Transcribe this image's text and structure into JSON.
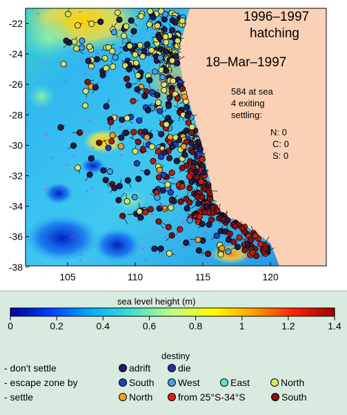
{
  "map": {
    "title_line1": "1996–1997",
    "title_line2": "hatching",
    "date": "18–Mar–1997",
    "stats": {
      "at_sea": "584 at sea",
      "exiting": "4 exiting",
      "settling": "settling:",
      "north": "N: 0",
      "central": "C: 0",
      "south": "S: 0"
    },
    "lat_ticks": [
      "-22",
      "-24",
      "-26",
      "-28",
      "-30",
      "-32",
      "-34",
      "-36",
      "-38"
    ],
    "lon_ticks": [
      "105",
      "110",
      "115",
      "120"
    ],
    "colors": {
      "land": "#fbd1b5",
      "marker_adrift": "#1a1a6e",
      "marker_south_settle": "#7a1010",
      "marker_north_escape": "#d8e060",
      "current_arrows": "#e030e0"
    }
  },
  "colorbar": {
    "title": "sea level height  (m)",
    "ticks": [
      "0",
      "0.2",
      "0.4",
      "0.6",
      "0.8",
      "1",
      "1.2",
      "1.4"
    ],
    "colors": [
      "#0000a0",
      "#0040ff",
      "#00b0ff",
      "#40e0d0",
      "#c0ff80",
      "#ffff00",
      "#ffa000",
      "#ff2000",
      "#a00000"
    ]
  },
  "legend": {
    "heading": "destiny",
    "rows": [
      {
        "category": "- don't settle",
        "items": [
          {
            "label": "adrift",
            "color": "#1c1c6e"
          },
          {
            "label": "die",
            "color": "#2430b0"
          }
        ]
      },
      {
        "category": "- escape zone by",
        "items": [
          {
            "label": "South",
            "color": "#1e40d0"
          },
          {
            "label": "West",
            "color": "#40a0e8"
          },
          {
            "label": "East",
            "color": "#60e0d0"
          },
          {
            "label": "North",
            "color": "#d8e860"
          }
        ]
      },
      {
        "category": "- settle",
        "items": [
          {
            "label": "North",
            "color": "#f0a020"
          },
          {
            "label": "from 25°S-34°S",
            "color": "#e02010"
          },
          {
            "label": "South",
            "color": "#8a1010"
          }
        ]
      }
    ]
  }
}
